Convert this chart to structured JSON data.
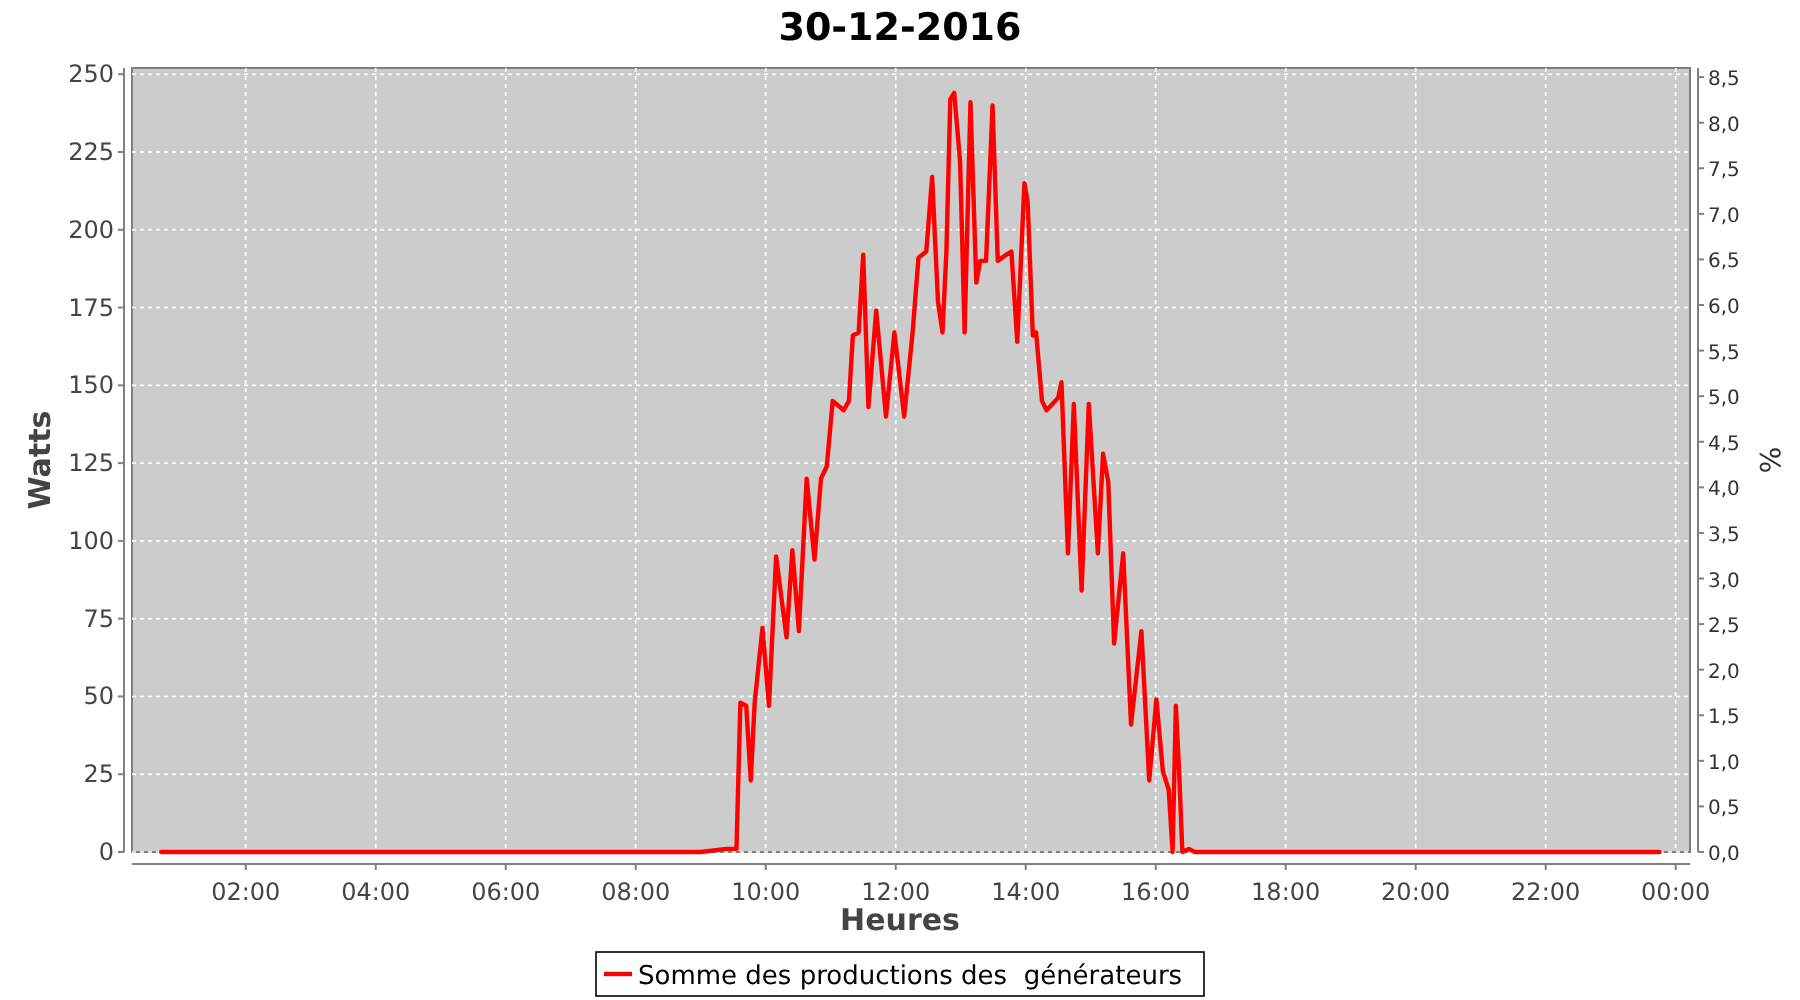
{
  "chart_data": {
    "type": "line",
    "title": "30-12-2016",
    "xlabel": "Heures",
    "ylabel": "Watts",
    "y2label": "%",
    "xlim": [
      0.25,
      24.22
    ],
    "xticks": [
      {
        "value": 2,
        "label": "02:00"
      },
      {
        "value": 4,
        "label": "04:00"
      },
      {
        "value": 6,
        "label": "06:00"
      },
      {
        "value": 8,
        "label": "08:00"
      },
      {
        "value": 10,
        "label": "10:00"
      },
      {
        "value": 12,
        "label": "12:00"
      },
      {
        "value": 14,
        "label": "14:00"
      },
      {
        "value": 16,
        "label": "16:00"
      },
      {
        "value": 18,
        "label": "18:00"
      },
      {
        "value": 20,
        "label": "20:00"
      },
      {
        "value": 22,
        "label": "22:00"
      },
      {
        "value": 24,
        "label": "00:00"
      }
    ],
    "ylim": [
      0,
      252
    ],
    "yticks": [
      0,
      25,
      50,
      75,
      100,
      125,
      150,
      175,
      200,
      225,
      250
    ],
    "y2lim": [
      0,
      8.6
    ],
    "y2ticks": [
      {
        "value": 0,
        "label": "0,0"
      },
      {
        "value": 0.5,
        "label": "0,5"
      },
      {
        "value": 1,
        "label": "1,0"
      },
      {
        "value": 1.5,
        "label": "1,5"
      },
      {
        "value": 2,
        "label": "2,0"
      },
      {
        "value": 2.5,
        "label": "2,5"
      },
      {
        "value": 3,
        "label": "3,0"
      },
      {
        "value": 3.5,
        "label": "3,5"
      },
      {
        "value": 4,
        "label": "4,0"
      },
      {
        "value": 4.5,
        "label": "4,5"
      },
      {
        "value": 5,
        "label": "5,0"
      },
      {
        "value": 5.5,
        "label": "5,5"
      },
      {
        "value": 6,
        "label": "6,0"
      },
      {
        "value": 6.5,
        "label": "6,5"
      },
      {
        "value": 7,
        "label": "7,0"
      },
      {
        "value": 7.5,
        "label": "7,5"
      },
      {
        "value": 8,
        "label": "8,0"
      },
      {
        "value": 8.5,
        "label": "8,5"
      }
    ],
    "grid": true,
    "legend": "bottom",
    "marker": "none",
    "line_style": "solid",
    "x": [
      0.7,
      3,
      6,
      9,
      9.4,
      9.55,
      9.61,
      9.7,
      9.77,
      9.83,
      9.95,
      10.05,
      10.16,
      10.32,
      10.41,
      10.51,
      10.63,
      10.75,
      10.85,
      10.94,
      11.03,
      11.2,
      11.28,
      11.34,
      11.43,
      11.5,
      11.58,
      11.7,
      11.85,
      11.98,
      12.13,
      12.26,
      12.35,
      12.47,
      12.56,
      12.65,
      12.72,
      12.78,
      12.84,
      12.9,
      12.99,
      13.06,
      13.15,
      13.24,
      13.3,
      13.39,
      13.49,
      13.57,
      13.7,
      13.78,
      13.87,
      13.98,
      14.03,
      14.11,
      14.16,
      14.25,
      14.32,
      14.41,
      14.5,
      14.55,
      14.65,
      14.74,
      14.86,
      14.97,
      15.11,
      15.19,
      15.27,
      15.36,
      15.5,
      15.62,
      15.78,
      15.9,
      16.01,
      16.11,
      16.2,
      16.26,
      16.31,
      16.36,
      16.41,
      16.51,
      16.6,
      18,
      21,
      23.75
    ],
    "series": [
      {
        "name": "Somme des productions des  générateurs",
        "color": "#ff0000",
        "values": [
          0,
          0,
          0,
          0,
          1,
          1,
          48,
          47,
          23,
          48,
          72,
          47,
          95,
          69,
          97,
          71,
          120,
          94,
          120,
          124,
          145,
          142,
          145,
          166,
          167,
          192,
          143,
          174,
          140,
          167,
          140,
          167,
          191,
          193,
          217,
          177,
          167,
          193,
          242,
          244,
          222,
          167,
          241,
          183,
          190,
          190,
          240,
          190,
          192,
          193,
          164,
          215,
          209,
          166,
          167,
          145,
          142,
          144,
          146,
          151,
          96,
          144,
          84,
          144,
          96,
          128,
          119,
          67,
          96,
          41,
          71,
          23,
          49,
          26,
          20,
          0,
          47,
          26,
          0,
          1,
          0,
          0,
          0,
          0
        ]
      }
    ]
  }
}
